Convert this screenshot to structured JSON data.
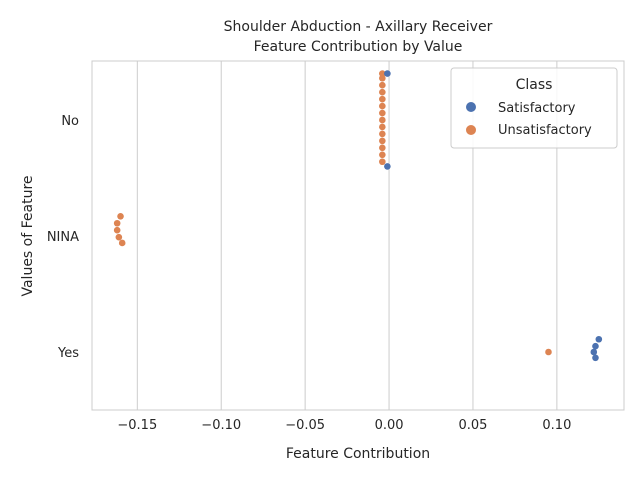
{
  "chart_data": {
    "type": "scatter",
    "title": "Shoulder Abduction - Axillary Receiver",
    "subtitle": "Feature Contribution by Value",
    "xlabel": "Feature Contribution",
    "ylabel": "Values of Feature",
    "xlim": [
      -0.177,
      0.14
    ],
    "x_ticks": [
      -0.15,
      -0.1,
      -0.05,
      0.0,
      0.05,
      0.1
    ],
    "x_tick_labels": [
      "−0.15",
      "−0.10",
      "−0.05",
      "0.00",
      "0.05",
      "0.10"
    ],
    "categories": [
      "No",
      "NINA",
      "Yes"
    ],
    "grid": "vertical",
    "legend": {
      "title": "Class",
      "placement": "top-right",
      "entries": [
        {
          "label": "Satisfactory",
          "color": "#4c72b0"
        },
        {
          "label": "Unsatisfactory",
          "color": "#dd8452"
        }
      ]
    },
    "series": [
      {
        "name": "Satisfactory",
        "color": "#4c72b0",
        "points": [
          {
            "category": "No",
            "x": -0.001,
            "offset": -0.4
          },
          {
            "category": "No",
            "x": -0.001,
            "offset": 0.4
          },
          {
            "category": "Yes",
            "x": 0.125,
            "offset": -0.11
          },
          {
            "category": "Yes",
            "x": 0.123,
            "offset": -0.05
          },
          {
            "category": "Yes",
            "x": 0.122,
            "offset": 0.0
          },
          {
            "category": "Yes",
            "x": 0.123,
            "offset": 0.05
          }
        ]
      },
      {
        "name": "Unsatisfactory",
        "color": "#dd8452",
        "points": [
          {
            "category": "No",
            "x": -0.004,
            "offset": -0.4
          },
          {
            "category": "No",
            "x": -0.004,
            "offset": -0.36
          },
          {
            "category": "No",
            "x": -0.004,
            "offset": -0.3
          },
          {
            "category": "No",
            "x": -0.004,
            "offset": -0.24
          },
          {
            "category": "No",
            "x": -0.004,
            "offset": -0.18
          },
          {
            "category": "No",
            "x": -0.004,
            "offset": -0.12
          },
          {
            "category": "No",
            "x": -0.004,
            "offset": -0.06
          },
          {
            "category": "No",
            "x": -0.004,
            "offset": 0.0
          },
          {
            "category": "No",
            "x": -0.004,
            "offset": 0.06
          },
          {
            "category": "No",
            "x": -0.004,
            "offset": 0.12
          },
          {
            "category": "No",
            "x": -0.004,
            "offset": 0.18
          },
          {
            "category": "No",
            "x": -0.004,
            "offset": 0.24
          },
          {
            "category": "No",
            "x": -0.004,
            "offset": 0.3
          },
          {
            "category": "No",
            "x": -0.004,
            "offset": 0.36
          },
          {
            "category": "NINA",
            "x": -0.16,
            "offset": -0.17
          },
          {
            "category": "NINA",
            "x": -0.162,
            "offset": -0.11
          },
          {
            "category": "NINA",
            "x": -0.162,
            "offset": -0.05
          },
          {
            "category": "NINA",
            "x": -0.161,
            "offset": 0.01
          },
          {
            "category": "NINA",
            "x": -0.159,
            "offset": 0.06
          },
          {
            "category": "Yes",
            "x": 0.095,
            "offset": 0.0
          }
        ]
      }
    ]
  }
}
